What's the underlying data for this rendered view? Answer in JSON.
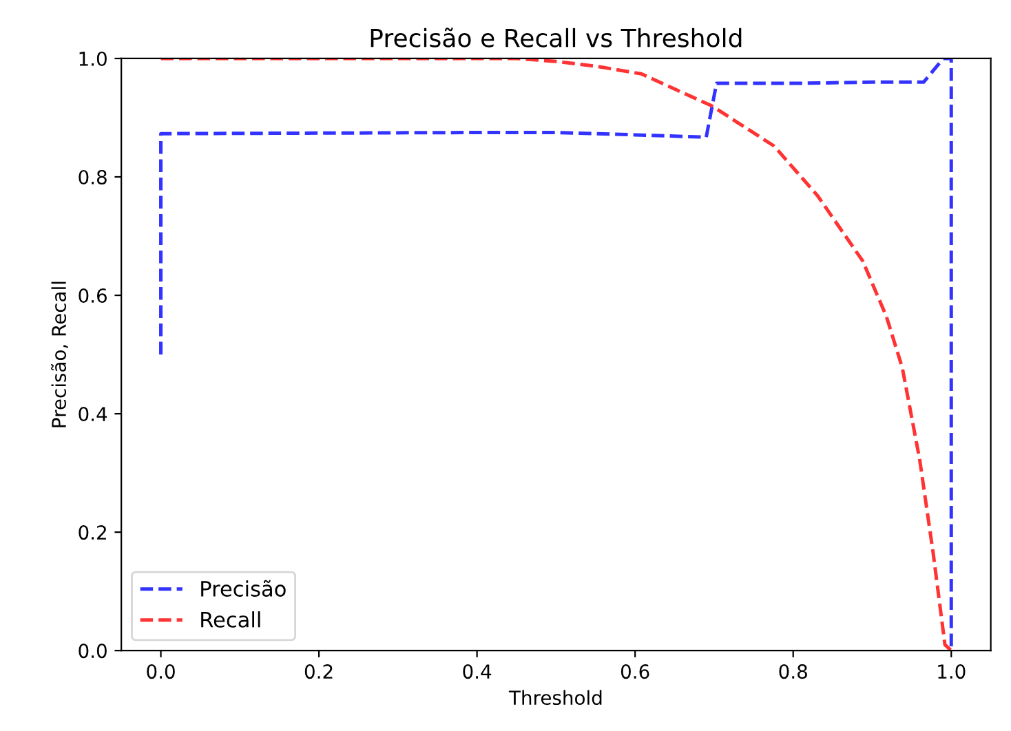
{
  "chart_data": {
    "type": "line",
    "title": "Precisão e Recall vs Threshold",
    "xlabel": "Threshold",
    "ylabel": "Precisão, Recall",
    "xlim": [
      -0.05,
      1.05
    ],
    "ylim": [
      0,
      1
    ],
    "xticks": [
      {
        "value": 0,
        "label": "0.0"
      },
      0.2,
      0.4,
      0.6,
      0.8,
      {
        "value": 1,
        "label": "1.0"
      }
    ],
    "yticks": [
      {
        "value": 0,
        "label": "0.0"
      },
      0.2,
      0.4,
      0.6,
      0.8,
      {
        "value": 1,
        "label": "1.0"
      }
    ],
    "grid": false,
    "legend": "bottom left",
    "line_style": "dashed",
    "marker": "none",
    "series": [
      {
        "name": "Precisão",
        "color": "#3333ff",
        "x": [
          0,
          0,
          0.2,
          0.4,
          0.5,
          0.6,
          0.69,
          0.703,
          0.8,
          0.9,
          0.965,
          0.99,
          1.0,
          1.0
        ],
        "values": [
          0.5,
          0.873,
          0.874,
          0.875,
          0.875,
          0.871,
          0.867,
          0.958,
          0.958,
          0.96,
          0.96,
          1.0,
          1.0,
          0
        ]
      },
      {
        "name": "Recall",
        "color": "#ff3333",
        "x": [
          0,
          0.2,
          0.45,
          0.5,
          0.55,
          0.608,
          0.697,
          0.776,
          0.831,
          0.888,
          0.918,
          0.938,
          0.96,
          0.977,
          0.992,
          1.0
        ],
        "values": [
          1,
          1,
          1,
          0.995,
          0.987,
          0.974,
          0.92,
          0.852,
          0.768,
          0.658,
          0.564,
          0.478,
          0.323,
          0.166,
          0.01,
          0
        ]
      }
    ]
  }
}
